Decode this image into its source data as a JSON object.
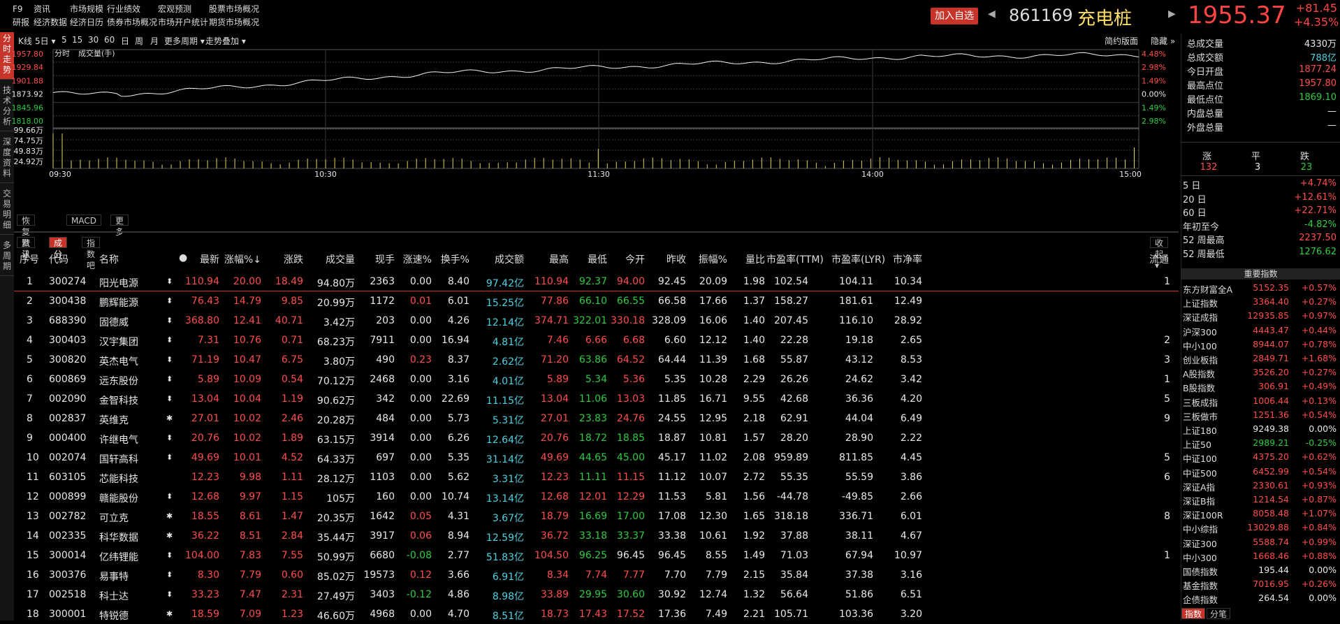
{
  "menu": [
    [
      "F9",
      "研报"
    ],
    [
      "资讯",
      "经济数据"
    ],
    [
      "市场规模",
      "经济日历"
    ],
    [
      "行业绩效",
      "债券市场概况"
    ],
    [
      "宏观预测",
      "市场开户统计"
    ],
    [
      "股票市场概况",
      "期货市场概况"
    ]
  ],
  "header": {
    "add_fav": "加入自选",
    "code": "861169",
    "name": "充电桩",
    "price": "1955.37",
    "change": "+81.45",
    "change_pct": "+4.35%"
  },
  "vtabs": [
    "分时走势",
    "技术分析",
    "深度资料",
    "交易明细",
    "多周期"
  ],
  "toolbar": {
    "items": [
      "K线",
      "5日",
      "5",
      "15",
      "30",
      "60",
      "日",
      "周",
      "月",
      "更多周期",
      "走势叠加"
    ],
    "right": [
      "简约版面",
      "隐藏"
    ],
    "sub_labels": [
      "分时",
      "成交量(手)"
    ]
  },
  "chart": {
    "price_ticks": [
      "1957.80",
      "1929.84",
      "1901.88",
      "1873.92",
      "1845.96",
      "1818.00"
    ],
    "pct_ticks": [
      "4.48%",
      "2.98%",
      "1.49%",
      "0.00%",
      "1.49%",
      "2.98%"
    ],
    "vol_ticks": [
      "99.66万",
      "74.75万",
      "49.83万",
      "24.92万"
    ],
    "time_ticks": [
      "09:30",
      "10:30",
      "11:30",
      "14:00",
      "15:00"
    ]
  },
  "bottom_tabs": [
    "恢复默认",
    "MACD",
    "更多"
  ],
  "table_tabs": [
    "资讯",
    "成分",
    "指数吧"
  ],
  "table_tab_right": "收起",
  "table": {
    "headers": [
      "序号",
      "代码",
      "名称",
      "●",
      "最新",
      "涨幅%↓",
      "涨跌",
      "成交量",
      "现手",
      "涨速%",
      "换手%",
      "成交额",
      "最高",
      "最低",
      "今开",
      "昨收",
      "振幅%",
      "量比",
      "市盈率(TTM)",
      "市盈率(LYR)",
      "市净率",
      "流通"
    ],
    "rows": [
      [
        "1",
        "300274",
        "阳光电源",
        "110.94",
        "20.00",
        "18.49",
        "94.80万",
        "2363",
        "0.00",
        "8.40",
        "97.42亿",
        "110.94",
        "92.37",
        "94.00",
        "92.45",
        "20.09",
        "1.98",
        "102.54",
        "104.11",
        "10.34",
        "1"
      ],
      [
        "2",
        "300438",
        "鹏辉能源",
        "76.43",
        "14.79",
        "9.85",
        "20.99万",
        "1172",
        "0.01",
        "6.01",
        "15.25亿",
        "77.86",
        "66.10",
        "66.55",
        "66.58",
        "17.66",
        "1.37",
        "158.27",
        "181.61",
        "12.49",
        ""
      ],
      [
        "3",
        "688390",
        "固德威",
        "368.80",
        "12.41",
        "40.71",
        "3.42万",
        "203",
        "0.00",
        "4.26",
        "12.14亿",
        "374.71",
        "322.01",
        "330.18",
        "328.09",
        "16.06",
        "1.40",
        "207.45",
        "116.10",
        "28.92",
        ""
      ],
      [
        "4",
        "300403",
        "汉宇集团",
        "7.31",
        "10.76",
        "0.71",
        "68.23万",
        "7911",
        "0.00",
        "16.94",
        "4.81亿",
        "7.46",
        "6.66",
        "6.68",
        "6.60",
        "12.12",
        "1.40",
        "22.28",
        "19.18",
        "2.65",
        "2"
      ],
      [
        "5",
        "300820",
        "英杰电气",
        "71.19",
        "10.47",
        "6.75",
        "3.80万",
        "490",
        "0.23",
        "8.37",
        "2.62亿",
        "71.20",
        "63.86",
        "64.52",
        "64.44",
        "11.39",
        "1.68",
        "55.87",
        "43.12",
        "8.53",
        "3"
      ],
      [
        "6",
        "600869",
        "远东股份",
        "5.89",
        "10.09",
        "0.54",
        "70.12万",
        "2468",
        "0.00",
        "3.16",
        "4.01亿",
        "5.89",
        "5.34",
        "5.36",
        "5.35",
        "10.28",
        "2.29",
        "26.26",
        "24.62",
        "3.42",
        "1"
      ],
      [
        "7",
        "002090",
        "金智科技",
        "13.04",
        "10.04",
        "1.19",
        "90.62万",
        "342",
        "0.00",
        "22.69",
        "11.15亿",
        "13.04",
        "11.06",
        "13.03",
        "11.85",
        "16.71",
        "9.55",
        "42.68",
        "36.36",
        "4.20",
        "5"
      ],
      [
        "8",
        "002837",
        "英维克",
        "27.01",
        "10.02",
        "2.46",
        "20.28万",
        "484",
        "0.00",
        "5.73",
        "5.31亿",
        "27.01",
        "23.83",
        "24.76",
        "24.55",
        "12.95",
        "2.18",
        "62.91",
        "44.04",
        "6.49",
        "9"
      ],
      [
        "9",
        "000400",
        "许继电气",
        "20.76",
        "10.02",
        "1.89",
        "63.15万",
        "3914",
        "0.00",
        "6.26",
        "12.64亿",
        "20.76",
        "18.72",
        "18.85",
        "18.87",
        "10.81",
        "1.57",
        "28.20",
        "28.90",
        "2.22",
        ""
      ],
      [
        "10",
        "002074",
        "国轩高科",
        "49.69",
        "10.01",
        "4.52",
        "64.33万",
        "697",
        "0.00",
        "5.35",
        "31.14亿",
        "49.69",
        "44.65",
        "45.00",
        "45.17",
        "11.02",
        "2.08",
        "959.89",
        "811.85",
        "4.45",
        "5"
      ],
      [
        "11",
        "603105",
        "芯能科技",
        "12.23",
        "9.98",
        "1.11",
        "28.12万",
        "1103",
        "0.00",
        "5.62",
        "3.31亿",
        "12.23",
        "11.11",
        "11.15",
        "11.12",
        "10.07",
        "2.72",
        "55.35",
        "55.59",
        "3.86",
        "6"
      ],
      [
        "12",
        "000899",
        "赣能股份",
        "12.68",
        "9.97",
        "1.15",
        "105万",
        "160",
        "0.00",
        "10.74",
        "13.14亿",
        "12.68",
        "12.01",
        "12.29",
        "11.53",
        "5.81",
        "1.56",
        "-44.78",
        "-49.85",
        "2.66",
        ""
      ],
      [
        "13",
        "002782",
        "可立克",
        "18.55",
        "8.61",
        "1.47",
        "20.35万",
        "1642",
        "0.05",
        "4.31",
        "3.67亿",
        "18.79",
        "16.69",
        "17.00",
        "17.08",
        "12.30",
        "1.65",
        "318.18",
        "336.71",
        "6.01",
        "8"
      ],
      [
        "14",
        "002335",
        "科华数据",
        "36.22",
        "8.51",
        "2.84",
        "35.44万",
        "3917",
        "0.06",
        "8.94",
        "12.59亿",
        "36.72",
        "33.18",
        "33.37",
        "33.38",
        "10.61",
        "1.92",
        "37.88",
        "38.11",
        "4.67",
        ""
      ],
      [
        "15",
        "300014",
        "亿纬锂能",
        "104.00",
        "7.83",
        "7.55",
        "50.99万",
        "6680",
        "-0.08",
        "2.77",
        "51.83亿",
        "104.50",
        "96.25",
        "96.45",
        "96.45",
        "8.55",
        "1.49",
        "71.03",
        "67.94",
        "10.97",
        "1"
      ],
      [
        "16",
        "300376",
        "易事特",
        "8.30",
        "7.79",
        "0.60",
        "85.02万",
        "19573",
        "0.12",
        "3.66",
        "6.91亿",
        "8.34",
        "7.74",
        "7.77",
        "7.70",
        "7.79",
        "2.15",
        "35.84",
        "37.38",
        "3.16",
        ""
      ],
      [
        "17",
        "002518",
        "科士达",
        "33.23",
        "7.47",
        "2.31",
        "27.49万",
        "3403",
        "-0.12",
        "4.86",
        "8.98亿",
        "33.89",
        "29.95",
        "30.60",
        "30.92",
        "12.74",
        "1.32",
        "56.64",
        "51.86",
        "6.51",
        ""
      ],
      [
        "18",
        "300001",
        "特锐德",
        "18.59",
        "7.09",
        "1.23",
        "46.60万",
        "4968",
        "0.00",
        "4.70",
        "8.51亿",
        "18.73",
        "17.43",
        "17.52",
        "17.36",
        "7.49",
        "2.21",
        "105.71",
        "103.36",
        "3.20",
        ""
      ]
    ],
    "marks": [
      "⬍",
      "⬍",
      "⬍",
      "⬍",
      "⬍",
      "⬍",
      "⬍",
      "✱",
      "⬍",
      "⬍",
      "",
      "⬍",
      "✱",
      "✱",
      "⬍",
      "⬍",
      "⬍",
      "✱"
    ]
  },
  "stats": [
    {
      "label": "总成交量",
      "value": "4330万",
      "color": "#e8e8e8"
    },
    {
      "label": "总成交额",
      "value": "788亿",
      "color": "#4fd0e0"
    },
    {
      "label": "今日开盘",
      "value": "1877.24",
      "color": "#ff4d4d"
    },
    {
      "label": "最高点位",
      "value": "1957.80",
      "color": "#ff4d4d"
    },
    {
      "label": "最低点位",
      "value": "1869.10",
      "color": "#2ecc40"
    },
    {
      "label": "内盘总量",
      "value": "—",
      "color": "#e8e8e8"
    },
    {
      "label": "外盘总量",
      "value": "—",
      "color": "#e8e8e8"
    }
  ],
  "breadth": {
    "labels": [
      "涨",
      "平",
      "跌"
    ],
    "values": [
      "132",
      "3",
      "23"
    ]
  },
  "periods": [
    {
      "label": "5 日",
      "value": "+4.74%",
      "color": "#ff4d4d"
    },
    {
      "label": "20 日",
      "value": "+12.61%",
      "color": "#ff4d4d"
    },
    {
      "label": "60 日",
      "value": "+22.71%",
      "color": "#ff4d4d"
    },
    {
      "label": "年初至今",
      "value": "-4.82%",
      "color": "#2ecc40"
    },
    {
      "label": "52 周最高",
      "value": "2237.50",
      "color": "#ff4d4d"
    },
    {
      "label": "52 周最低",
      "value": "1276.62",
      "color": "#2ecc40"
    }
  ],
  "indices_title": "重要指数",
  "indices": [
    [
      "东方财富全A",
      "5152.35",
      "+0.57%",
      "#ff4d4d"
    ],
    [
      "上证指数",
      "3364.40",
      "+0.27%",
      "#ff4d4d"
    ],
    [
      "深证成指",
      "12935.85",
      "+0.97%",
      "#ff4d4d"
    ],
    [
      "沪深300",
      "4443.47",
      "+0.44%",
      "#ff4d4d"
    ],
    [
      "中小100",
      "8944.07",
      "+0.78%",
      "#ff4d4d"
    ],
    [
      "创业板指",
      "2849.71",
      "+1.68%",
      "#ff4d4d"
    ],
    [
      "A股指数",
      "3526.20",
      "+0.27%",
      "#ff4d4d"
    ],
    [
      "B股指数",
      "306.91",
      "+0.49%",
      "#ff4d4d"
    ],
    [
      "三板成指",
      "1006.44",
      "+0.13%",
      "#ff4d4d"
    ],
    [
      "三板做市",
      "1251.36",
      "+0.54%",
      "#ff4d4d"
    ],
    [
      "上证180",
      "9249.38",
      "0.00%",
      "#e8e8e8"
    ],
    [
      "上证50",
      "2989.21",
      "-0.25%",
      "#2ecc40"
    ],
    [
      "中证100",
      "4375.20",
      "+0.62%",
      "#ff4d4d"
    ],
    [
      "中证500",
      "6452.99",
      "+0.54%",
      "#ff4d4d"
    ],
    [
      "深证A指",
      "2330.61",
      "+0.93%",
      "#ff4d4d"
    ],
    [
      "深证B指",
      "1214.54",
      "+0.87%",
      "#ff4d4d"
    ],
    [
      "深证100R",
      "8058.48",
      "+1.07%",
      "#ff4d4d"
    ],
    [
      "中小综指",
      "13029.88",
      "+0.84%",
      "#ff4d4d"
    ],
    [
      "深证300",
      "5588.74",
      "+0.99%",
      "#ff4d4d"
    ],
    [
      "中小300",
      "1668.46",
      "+0.88%",
      "#ff4d4d"
    ],
    [
      "国债指数",
      "195.44",
      "0.00%",
      "#e8e8e8"
    ],
    [
      "基金指数",
      "7016.95",
      "+0.26%",
      "#ff4d4d"
    ],
    [
      "企债指数",
      "264.54",
      "0.00%",
      "#e8e8e8"
    ]
  ],
  "panel_tabs": [
    "指数",
    "分笔"
  ]
}
